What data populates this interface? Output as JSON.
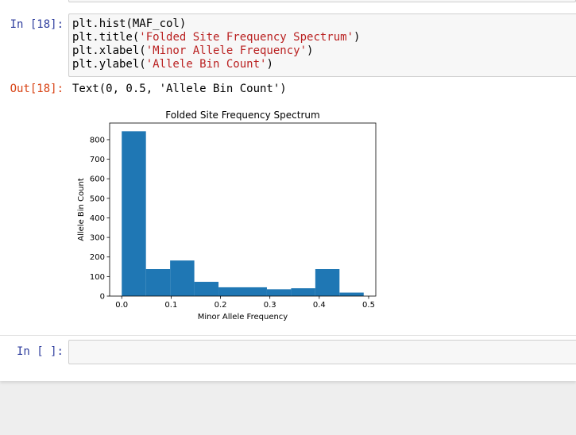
{
  "cells": [
    {
      "prompt": "In [18]:",
      "code_lines": [
        [
          {
            "t": "plt.hist(MAF_col)"
          }
        ],
        [
          {
            "t": "plt.title("
          },
          {
            "t": "'Folded Site Frequency Spectrum'",
            "s": true
          },
          {
            "t": ")"
          }
        ],
        [
          {
            "t": "plt.xlabel("
          },
          {
            "t": "'Minor Allele Frequency'",
            "s": true
          },
          {
            "t": ")"
          }
        ],
        [
          {
            "t": "plt.ylabel("
          },
          {
            "t": "'Allele Bin Count'",
            "s": true
          },
          {
            "t": ")"
          }
        ]
      ],
      "out_prompt": "Out[18]:",
      "out_text": "Text(0, 0.5, 'Allele Bin Count')"
    },
    {
      "prompt": "In [ ]:",
      "code_lines": []
    }
  ],
  "chart_data": {
    "type": "bar",
    "title": "Folded Site Frequency Spectrum",
    "xlabel": "Minor Allele Frequency",
    "ylabel": "Allele Bin Count",
    "bins": [
      [
        0.0,
        0.049
      ],
      [
        0.049,
        0.098
      ],
      [
        0.098,
        0.147
      ],
      [
        0.147,
        0.196
      ],
      [
        0.196,
        0.245
      ],
      [
        0.245,
        0.294
      ],
      [
        0.294,
        0.343
      ],
      [
        0.343,
        0.392
      ],
      [
        0.392,
        0.441
      ],
      [
        0.441,
        0.49
      ]
    ],
    "values": [
      843,
      138,
      182,
      73,
      45,
      45,
      35,
      40,
      138,
      18
    ],
    "xlim": [
      -0.0245,
      0.5145
    ],
    "ylim": [
      0,
      885
    ],
    "xticks": [
      "0.0",
      "0.1",
      "0.2",
      "0.3",
      "0.4",
      "0.5"
    ],
    "yticks": [
      "0",
      "100",
      "200",
      "300",
      "400",
      "500",
      "600",
      "700",
      "800"
    ],
    "bar_color": "#1f77b4",
    "grid": false,
    "legend": "none"
  }
}
